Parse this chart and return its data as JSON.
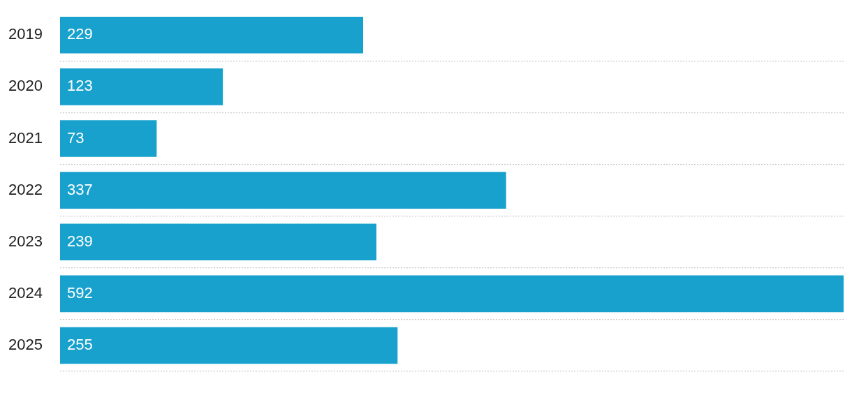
{
  "chart_data": {
    "type": "bar",
    "orientation": "horizontal",
    "categories": [
      "2019",
      "2020",
      "2021",
      "2022",
      "2023",
      "2024",
      "2025"
    ],
    "values": [
      229,
      123,
      73,
      337,
      239,
      592,
      255
    ],
    "color": "#18a1cd",
    "data_labels": true,
    "grid": "y",
    "legend": false
  }
}
